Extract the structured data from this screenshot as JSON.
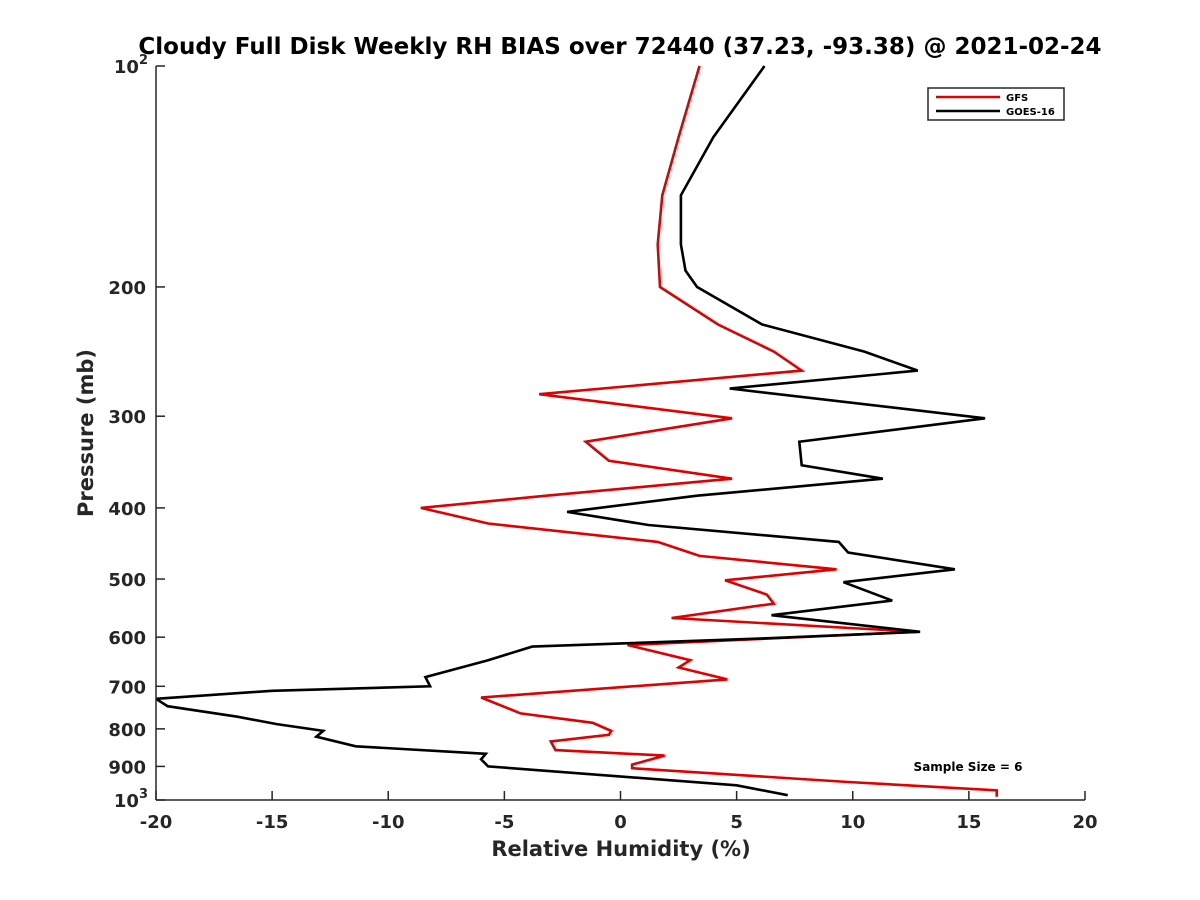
{
  "chart_data": {
    "type": "line",
    "title": "Cloudy Full Disk Weekly RH BIAS over 72440 (37.23, -93.38) @ 2021-02-24",
    "xlabel": "Relative Humidity (%)",
    "ylabel": "Pressure (mb)",
    "xlim": [
      -20,
      20
    ],
    "ylim": [
      1000,
      100
    ],
    "y_scale": "log",
    "y_reversed": true,
    "grid": false,
    "legend_position": "top-right",
    "x_ticks": [
      -20,
      -15,
      -10,
      -5,
      0,
      5,
      10,
      15,
      20
    ],
    "x_tick_labels": [
      "-20",
      "-15",
      "-10",
      "-5",
      "0",
      "5",
      "10",
      "15",
      "20"
    ],
    "y_ticks": [
      100,
      200,
      300,
      400,
      500,
      600,
      700,
      800,
      900,
      1000
    ],
    "y_tick_labels": [
      "10^2",
      "200",
      "300",
      "400",
      "500",
      "600",
      "700",
      "800",
      "900",
      "10^3"
    ],
    "annotation": "Sample Size = 6",
    "series": [
      {
        "name": "GFS",
        "color": "#e00000",
        "points": [
          [
            3.4,
            100
          ],
          [
            2.5,
            125
          ],
          [
            1.8,
            150
          ],
          [
            1.6,
            175
          ],
          [
            1.7,
            200
          ],
          [
            4.2,
            225
          ],
          [
            6.6,
            245
          ],
          [
            7.8,
            260
          ],
          [
            -3.5,
            280
          ],
          [
            4.8,
            302
          ],
          [
            -1.5,
            325
          ],
          [
            -0.5,
            345
          ],
          [
            4.8,
            365
          ],
          [
            -3.2,
            385
          ],
          [
            -8.6,
            400
          ],
          [
            -5.7,
            420
          ],
          [
            1.6,
            445
          ],
          [
            3.4,
            465
          ],
          [
            9.3,
            485
          ],
          [
            4.5,
            502
          ],
          [
            6.3,
            525
          ],
          [
            6.6,
            540
          ],
          [
            2.2,
            565
          ],
          [
            12.8,
            590
          ],
          [
            0.3,
            615
          ],
          [
            3.0,
            645
          ],
          [
            2.5,
            660
          ],
          [
            4.6,
            685
          ],
          [
            -6.0,
            725
          ],
          [
            -4.3,
            762
          ],
          [
            -1.2,
            785
          ],
          [
            -0.4,
            805
          ],
          [
            -0.5,
            815
          ],
          [
            -3.0,
            832
          ],
          [
            -2.8,
            855
          ],
          [
            1.9,
            870
          ],
          [
            0.5,
            895
          ],
          [
            0.5,
            905
          ],
          [
            9.8,
            945
          ],
          [
            16.2,
            970
          ],
          [
            16.2,
            990
          ]
        ]
      },
      {
        "name": "GOES-16",
        "color": "#000000",
        "points": [
          [
            6.2,
            100
          ],
          [
            4.0,
            125
          ],
          [
            2.6,
            150
          ],
          [
            2.6,
            175
          ],
          [
            2.8,
            190
          ],
          [
            3.3,
            200
          ],
          [
            6.1,
            225
          ],
          [
            10.5,
            245
          ],
          [
            12.8,
            260
          ],
          [
            4.7,
            275
          ],
          [
            15.7,
            302
          ],
          [
            7.7,
            325
          ],
          [
            7.8,
            350
          ],
          [
            11.3,
            365
          ],
          [
            3.3,
            385
          ],
          [
            -2.3,
            405
          ],
          [
            1.2,
            422
          ],
          [
            9.4,
            445
          ],
          [
            9.8,
            460
          ],
          [
            14.4,
            485
          ],
          [
            9.6,
            505
          ],
          [
            11.7,
            535
          ],
          [
            6.5,
            560
          ],
          [
            12.9,
            590
          ],
          [
            6.4,
            602
          ],
          [
            -3.8,
            618
          ],
          [
            -5.7,
            645
          ],
          [
            -8.4,
            680
          ],
          [
            -8.2,
            700
          ],
          [
            -15.0,
            710
          ],
          [
            -20.0,
            728
          ],
          [
            -19.5,
            745
          ],
          [
            -16.5,
            770
          ],
          [
            -14.8,
            788
          ],
          [
            -12.8,
            805
          ],
          [
            -13.1,
            820
          ],
          [
            -11.4,
            845
          ],
          [
            -5.8,
            865
          ],
          [
            -6.0,
            880
          ],
          [
            -5.7,
            900
          ],
          [
            5.0,
            955
          ],
          [
            7.2,
            985
          ]
        ]
      }
    ]
  }
}
